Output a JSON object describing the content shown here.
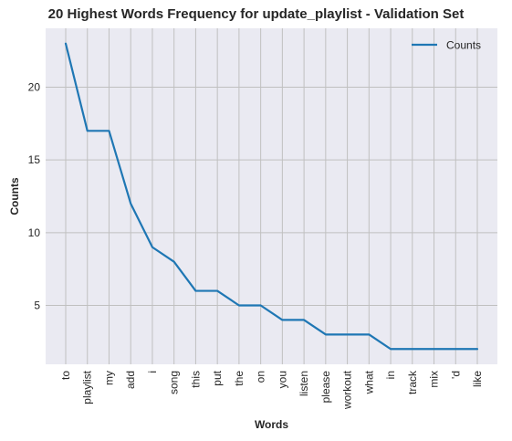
{
  "chart_data": {
    "type": "line",
    "title": "20 Highest Words Frequency for update_playlist - Validation Set",
    "xlabel": "Words",
    "ylabel": "Counts",
    "categories": [
      "to",
      "playlist",
      "my",
      "add",
      "i",
      "song",
      "this",
      "put",
      "the",
      "on",
      "you",
      "listen",
      "please",
      "workout",
      "what",
      "in",
      "track",
      "mix",
      "'d",
      "like"
    ],
    "series": [
      {
        "name": "Counts",
        "values": [
          23,
          17,
          17,
          12,
          9,
          8,
          6,
          6,
          5,
          5,
          4,
          4,
          3,
          3,
          3,
          2,
          2,
          2,
          2,
          2
        ]
      }
    ],
    "yticks": [
      5,
      10,
      15,
      20
    ],
    "ylim": [
      0.95,
      24.05
    ],
    "grid": true,
    "legend": "top-right",
    "colors": {
      "line": "#1f77b4",
      "plot_bg": "#eaeaf2",
      "grid": "#c0c0c0"
    }
  }
}
